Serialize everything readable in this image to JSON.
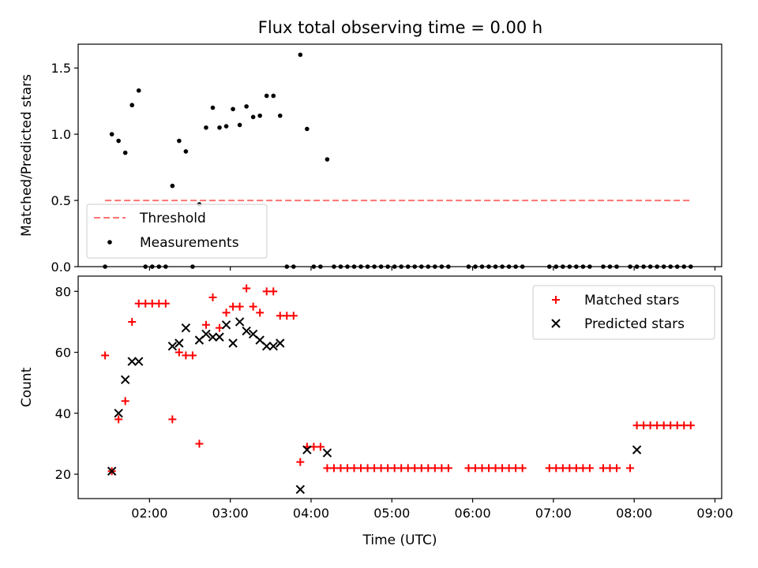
{
  "title": "Flux total observing time = 0.00 h",
  "chart_data": [
    {
      "type": "scatter",
      "ylabel": "Matched/Predicted stars",
      "xlabel": "",
      "xlim": [
        "01:07",
        "09:05"
      ],
      "ylim": [
        0,
        1.68
      ],
      "yticks": [
        "0.0",
        "0.5",
        "1.0",
        "1.5"
      ],
      "legend_position": "lower-left",
      "threshold": {
        "name": "Threshold",
        "value": 0.5,
        "x_start": "01:27",
        "x_end": "08:42",
        "color": "#ff7373",
        "style": "dashed"
      },
      "series": [
        {
          "name": "Measurements",
          "color": "#000000",
          "x": [
            "01:27",
            "01:32",
            "01:37",
            "01:42",
            "01:47",
            "01:52",
            "01:57",
            "02:02",
            "02:07",
            "02:12",
            "02:17",
            "02:22",
            "02:27",
            "02:32",
            "02:37",
            "02:42",
            "02:47",
            "02:52",
            "02:57",
            "03:02",
            "03:07",
            "03:12",
            "03:17",
            "03:22",
            "03:27",
            "03:32",
            "03:37",
            "03:42",
            "03:47",
            "03:52",
            "03:57",
            "04:02",
            "04:07",
            "04:12",
            "04:17",
            "04:22",
            "04:27",
            "04:32",
            "04:37",
            "04:42",
            "04:47",
            "04:52",
            "04:57",
            "05:02",
            "05:07",
            "05:12",
            "05:17",
            "05:22",
            "05:27",
            "05:32",
            "05:37",
            "05:42",
            "05:57",
            "06:02",
            "06:07",
            "06:12",
            "06:17",
            "06:22",
            "06:27",
            "06:32",
            "06:37",
            "06:57",
            "07:02",
            "07:07",
            "07:12",
            "07:17",
            "07:22",
            "07:27",
            "07:37",
            "07:42",
            "07:47",
            "07:57",
            "08:02",
            "08:07",
            "08:12",
            "08:17",
            "08:22",
            "08:27",
            "08:32",
            "08:37",
            "08:42"
          ],
          "y": [
            0,
            1.0,
            0.95,
            0.86,
            1.22,
            1.33,
            0,
            0,
            0,
            0,
            0.61,
            0.95,
            0.87,
            0,
            0.47,
            1.05,
            1.2,
            1.05,
            1.06,
            1.19,
            1.07,
            1.21,
            1.13,
            1.14,
            1.29,
            1.29,
            1.14,
            0,
            0,
            1.6,
            1.04,
            0,
            0,
            0.81,
            0,
            0,
            0,
            0,
            0,
            0,
            0,
            0,
            0,
            0,
            0,
            0,
            0,
            0,
            0,
            0,
            0,
            0,
            0,
            0,
            0,
            0,
            0,
            0,
            0,
            0,
            0,
            0,
            0,
            0,
            0,
            0,
            0,
            0,
            0,
            0,
            0,
            0,
            0,
            0,
            0,
            0,
            0,
            0,
            0,
            0,
            0
          ]
        }
      ]
    },
    {
      "type": "scatter",
      "ylabel": "Count",
      "xlabel": "Time (UTC)",
      "xlim": [
        "01:07",
        "09:05"
      ],
      "ylim": [
        12,
        85
      ],
      "yticks": [
        "20",
        "40",
        "60",
        "80"
      ],
      "xticks": [
        "02:00",
        "03:00",
        "04:00",
        "05:00",
        "06:00",
        "07:00",
        "08:00",
        "09:00"
      ],
      "legend_position": "top-right",
      "series": [
        {
          "name": "Matched stars",
          "marker": "plus",
          "color": "#ff0000",
          "x": [
            "01:27",
            "01:32",
            "01:37",
            "01:42",
            "01:47",
            "01:52",
            "01:57",
            "02:02",
            "02:07",
            "02:12",
            "02:17",
            "02:22",
            "02:27",
            "02:32",
            "02:37",
            "02:42",
            "02:47",
            "02:52",
            "02:57",
            "03:02",
            "03:07",
            "03:12",
            "03:17",
            "03:22",
            "03:27",
            "03:32",
            "03:37",
            "03:42",
            "03:47",
            "03:52",
            "03:57",
            "04:02",
            "04:07",
            "04:12",
            "04:17",
            "04:22",
            "04:27",
            "04:32",
            "04:37",
            "04:42",
            "04:47",
            "04:52",
            "04:57",
            "05:02",
            "05:07",
            "05:12",
            "05:17",
            "05:22",
            "05:27",
            "05:32",
            "05:37",
            "05:42",
            "05:57",
            "06:02",
            "06:07",
            "06:12",
            "06:17",
            "06:22",
            "06:27",
            "06:32",
            "06:37",
            "06:57",
            "07:02",
            "07:07",
            "07:12",
            "07:17",
            "07:22",
            "07:27",
            "07:37",
            "07:42",
            "07:47",
            "07:57",
            "08:02",
            "08:07",
            "08:12",
            "08:17",
            "08:22",
            "08:27",
            "08:32",
            "08:37",
            "08:42"
          ],
          "y": [
            59,
            21,
            38,
            44,
            70,
            76,
            76,
            76,
            76,
            76,
            38,
            60,
            59,
            59,
            30,
            69,
            78,
            68,
            73,
            75,
            75,
            81,
            75,
            73,
            80,
            80,
            72,
            72,
            72,
            24,
            29,
            29,
            29,
            22,
            22,
            22,
            22,
            22,
            22,
            22,
            22,
            22,
            22,
            22,
            22,
            22,
            22,
            22,
            22,
            22,
            22,
            22,
            22,
            22,
            22,
            22,
            22,
            22,
            22,
            22,
            22,
            22,
            22,
            22,
            22,
            22,
            22,
            22,
            22,
            22,
            22,
            22,
            36,
            36,
            36,
            36,
            36,
            36,
            36,
            36,
            36
          ]
        },
        {
          "name": "Predicted stars",
          "marker": "x",
          "color": "#000000",
          "x": [
            "01:32",
            "01:37",
            "01:42",
            "01:47",
            "01:52",
            "02:17",
            "02:22",
            "02:27",
            "02:37",
            "02:42",
            "02:47",
            "02:52",
            "02:57",
            "03:02",
            "03:07",
            "03:12",
            "03:17",
            "03:22",
            "03:27",
            "03:32",
            "03:37",
            "03:52",
            "03:57",
            "04:12",
            "08:02"
          ],
          "y": [
            21,
            40,
            51,
            57,
            57,
            62,
            63,
            68,
            64,
            66,
            65,
            65,
            69,
            63,
            70,
            67,
            66,
            64,
            62,
            62,
            63,
            15,
            28,
            27,
            28
          ]
        }
      ]
    }
  ]
}
